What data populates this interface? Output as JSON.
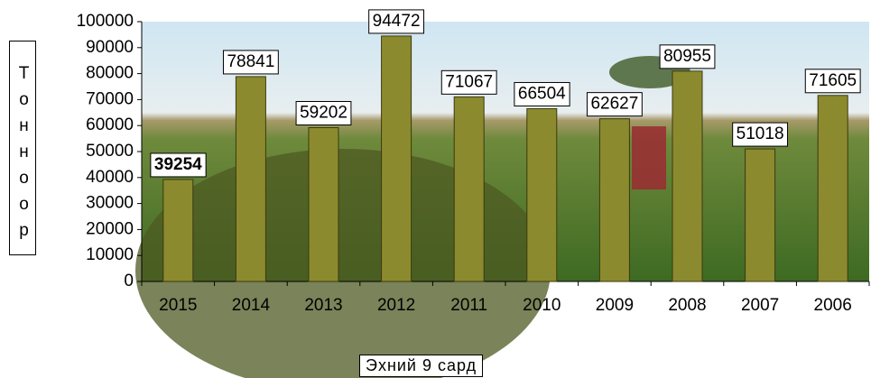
{
  "chart_data": {
    "type": "bar",
    "y_label": "Тонноор",
    "x_label": "Эхний 9 сард",
    "categories": [
      "2015",
      "2014",
      "2013",
      "2012",
      "2011",
      "2010",
      "2009",
      "2008",
      "2007",
      "2006"
    ],
    "values": [
      39254,
      78841,
      59202,
      94472,
      71067,
      66504,
      62627,
      80955,
      51018,
      71605
    ],
    "color": "#8c8a2e",
    "ylim": [
      0,
      100000
    ],
    "yticks": [
      0,
      10000,
      20000,
      30000,
      40000,
      50000,
      60000,
      70000,
      80000,
      90000,
      100000
    ]
  }
}
